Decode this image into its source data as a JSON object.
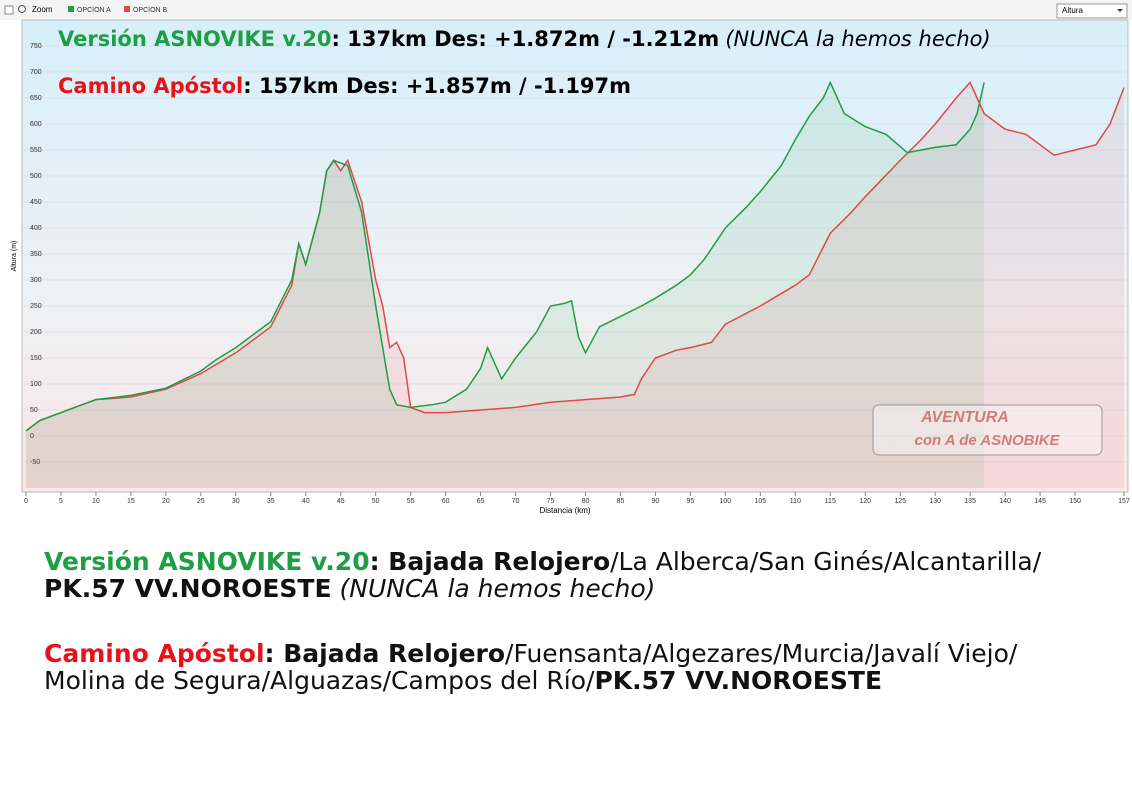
{
  "toolbar": {
    "zoom": "Zoom",
    "dropdown": "Altura"
  },
  "chart_data": {
    "type": "line",
    "x_label": "Distancia (km)",
    "y_label": "Altura (m)",
    "xlim": [
      0,
      157
    ],
    "ylim": [
      -100,
      800
    ],
    "xticks": [
      0,
      5,
      10,
      15,
      20,
      25,
      30,
      35,
      40,
      45,
      50,
      55,
      60,
      65,
      70,
      75,
      80,
      85,
      90,
      95,
      100,
      105,
      110,
      115,
      120,
      125,
      130,
      135,
      140,
      145,
      150,
      157
    ],
    "yticks": [
      -50,
      0,
      50,
      100,
      150,
      200,
      250,
      300,
      350,
      400,
      450,
      500,
      550,
      600,
      650,
      700,
      750
    ],
    "grid": true,
    "series": [
      {
        "name": "OPCION A",
        "color": "#1e9e45",
        "x": [
          0,
          2,
          5,
          10,
          15,
          20,
          25,
          27,
          30,
          35,
          38,
          39,
          40,
          42,
          43,
          44,
          46,
          48,
          50,
          51,
          52,
          53,
          55,
          58,
          60,
          63,
          65,
          66,
          68,
          70,
          73,
          75,
          77,
          78,
          79,
          80,
          82,
          85,
          88,
          90,
          93,
          95,
          97,
          100,
          103,
          105,
          108,
          110,
          112,
          114,
          115,
          117,
          120,
          123,
          126,
          128,
          130,
          133,
          135,
          136,
          137
        ],
        "values": [
          10,
          30,
          45,
          70,
          78,
          92,
          125,
          145,
          170,
          220,
          300,
          370,
          330,
          430,
          510,
          530,
          520,
          430,
          250,
          170,
          90,
          60,
          55,
          60,
          65,
          90,
          130,
          170,
          110,
          150,
          200,
          250,
          255,
          260,
          190,
          160,
          210,
          230,
          250,
          265,
          290,
          310,
          340,
          400,
          440,
          470,
          520,
          570,
          615,
          650,
          680,
          620,
          595,
          580,
          545,
          550,
          555,
          560,
          590,
          620,
          680
        ]
      },
      {
        "name": "OPCION B",
        "color": "#e0484b",
        "x": [
          0,
          2,
          5,
          10,
          15,
          20,
          25,
          30,
          35,
          38,
          39,
          40,
          42,
          43,
          44,
          45,
          46,
          48,
          50,
          51,
          52,
          53,
          54,
          55,
          57,
          60,
          65,
          70,
          75,
          80,
          85,
          87,
          88,
          90,
          93,
          95,
          98,
          100,
          105,
          110,
          112,
          115,
          118,
          120,
          125,
          128,
          130,
          133,
          135,
          137,
          140,
          143,
          147,
          150,
          153,
          155,
          157
        ],
        "values": [
          10,
          30,
          45,
          70,
          75,
          90,
          120,
          160,
          210,
          290,
          370,
          330,
          430,
          510,
          530,
          510,
          530,
          450,
          300,
          250,
          170,
          180,
          150,
          55,
          45,
          45,
          50,
          55,
          65,
          70,
          75,
          80,
          110,
          150,
          165,
          170,
          180,
          215,
          250,
          290,
          310,
          390,
          430,
          460,
          530,
          570,
          600,
          650,
          680,
          620,
          590,
          580,
          540,
          550,
          560,
          600,
          670
        ]
      }
    ],
    "annotations": [
      {
        "label": "Versión ASNOVIKE v.20",
        "stats": ":  137km  Des: +1.872m / -1.212m",
        "note": "(NUNCA la hemos hecho)"
      },
      {
        "label": "Camino Apóstol",
        "stats": ":  157km  Des: +1.857m / -1.197m"
      }
    ]
  },
  "watermark": {
    "line1": "AVENTURA",
    "line2": "con A de ASNOBIKE"
  },
  "description": [
    {
      "color": "#1e9e45",
      "lines": [
        [
          {
            "text": "Versión ASNOVIKE v.20",
            "style": "label"
          },
          {
            "text": ":  Bajada Relojero",
            "style": "bold"
          },
          {
            "text": "/La Alberca/San Ginés/Alcantarilla/",
            "style": "normal"
          }
        ],
        [
          {
            "text": "PK.57 VV.NOROESTE",
            "style": "bold"
          },
          {
            "text": " (NUNCA la hemos hecho)",
            "style": "italic"
          }
        ]
      ]
    },
    {
      "color": "#e8131a",
      "lines": [
        [
          {
            "text": "Camino Apóstol",
            "style": "label"
          },
          {
            "text": ":  Bajada Relojero",
            "style": "bold"
          },
          {
            "text": "/Fuensanta/Algezares/Murcia/Javalí Viejo/",
            "style": "normal"
          }
        ],
        [
          {
            "text": "Molina de Segura/Alguazas/Campos del Río/",
            "style": "normal"
          },
          {
            "text": "PK.57 VV.NOROESTE",
            "style": "bold"
          }
        ]
      ]
    }
  ]
}
